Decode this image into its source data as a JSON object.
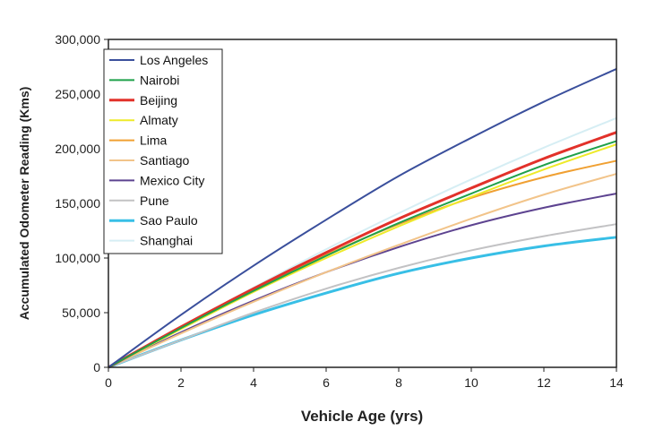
{
  "chart_data": {
    "type": "line",
    "title": "",
    "xlabel": "Vehicle Age (yrs)",
    "ylabel": "Accumulated Odometer Reading (Kms)",
    "xlim": [
      0,
      14
    ],
    "ylim": [
      0,
      300000
    ],
    "x_ticks": [
      "0",
      "2",
      "4",
      "6",
      "8",
      "10",
      "12",
      "14"
    ],
    "y_ticks": [
      "0",
      "50,000",
      "100,000",
      "150,000",
      "200,000",
      "250,000",
      "300,000"
    ],
    "grid": false,
    "legend_position": "top-left",
    "x": [
      0,
      2,
      4,
      6,
      8,
      10,
      12,
      14
    ],
    "series": [
      {
        "name": "Los Angeles",
        "color": "#3a4f9c",
        "width": 2,
        "values": [
          0,
          48000,
          93000,
          135000,
          175000,
          210000,
          243000,
          273000
        ]
      },
      {
        "name": "Nairobi",
        "color": "#1fa04a",
        "width": 2,
        "values": [
          0,
          36000,
          70000,
          102000,
          132000,
          159000,
          185000,
          207000
        ]
      },
      {
        "name": "Beijing",
        "color": "#e2312a",
        "width": 3,
        "values": [
          0,
          37000,
          72000,
          105000,
          136000,
          164000,
          191000,
          215000
        ]
      },
      {
        "name": "Almaty",
        "color": "#eeea2a",
        "width": 2,
        "values": [
          0,
          35000,
          69000,
          100000,
          129000,
          156000,
          181000,
          204000
        ]
      },
      {
        "name": "Lima",
        "color": "#f0a032",
        "width": 2,
        "values": [
          0,
          37000,
          71000,
          103000,
          131000,
          155000,
          174000,
          189000
        ]
      },
      {
        "name": "Santiago",
        "color": "#f2c48a",
        "width": 2,
        "values": [
          0,
          31000,
          60000,
          87000,
          112000,
          136000,
          158000,
          177000
        ]
      },
      {
        "name": "Mexico City",
        "color": "#5d4390",
        "width": 2,
        "values": [
          0,
          32000,
          61000,
          87000,
          110000,
          130000,
          146000,
          159000
        ]
      },
      {
        "name": "Pune",
        "color": "#c2c2c4",
        "width": 2,
        "values": [
          0,
          25000,
          50000,
          72000,
          91000,
          107000,
          120000,
          131000
        ]
      },
      {
        "name": "Sao Paulo",
        "color": "#38bfe6",
        "width": 3,
        "values": [
          0,
          25000,
          48000,
          68000,
          86000,
          100000,
          111000,
          119000
        ]
      },
      {
        "name": "Shanghai",
        "color": "#d6eef4",
        "width": 2,
        "values": [
          0,
          37000,
          73000,
          108000,
          141000,
          172000,
          201000,
          228000
        ]
      }
    ]
  }
}
